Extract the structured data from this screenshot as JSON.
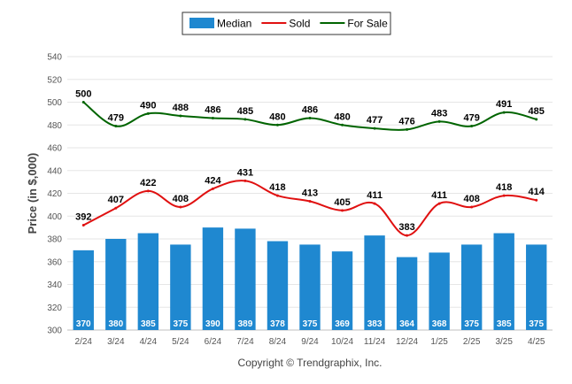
{
  "chart_data": {
    "type": "bar",
    "categories": [
      "2/24",
      "3/24",
      "4/24",
      "5/24",
      "6/24",
      "7/24",
      "8/24",
      "9/24",
      "10/24",
      "11/24",
      "12/24",
      "1/25",
      "2/25",
      "3/25",
      "4/25"
    ],
    "series": [
      {
        "name": "Median",
        "type": "bar",
        "color": "#1f88d0",
        "values": [
          370,
          380,
          385,
          375,
          390,
          389,
          378,
          375,
          369,
          383,
          364,
          368,
          375,
          385,
          375
        ]
      },
      {
        "name": "Sold",
        "type": "line",
        "color": "#e01010",
        "values": [
          392,
          407,
          422,
          408,
          424,
          431,
          418,
          413,
          405,
          411,
          383,
          411,
          408,
          418,
          414
        ]
      },
      {
        "name": "For Sale",
        "type": "line",
        "color": "#006400",
        "values": [
          500,
          479,
          490,
          488,
          486,
          485,
          480,
          486,
          480,
          477,
          476,
          483,
          479,
          491,
          485
        ]
      }
    ],
    "ylabel": "Price (in $,000)",
    "xlabel": "",
    "ylim": [
      300,
      540
    ],
    "yticks": [
      300,
      320,
      340,
      360,
      380,
      400,
      420,
      440,
      460,
      480,
      500,
      520,
      540
    ],
    "grid": true,
    "legend_position": "top-center"
  },
  "footer": "Copyright © Trendgraphix, Inc."
}
